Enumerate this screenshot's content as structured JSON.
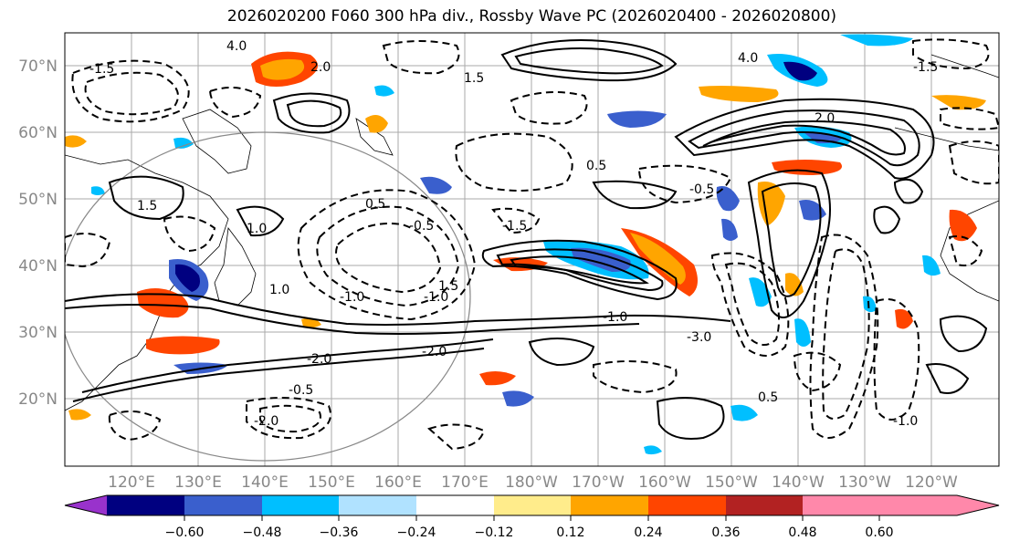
{
  "title": "2026020200 F060 300 hPa div., Rossby Wave PC (2026020400 - 2026020800)",
  "map": {
    "lat_labels": [
      "70°N",
      "60°N",
      "50°N",
      "40°N",
      "30°N",
      "20°N"
    ],
    "lon_labels": [
      "120°E",
      "130°E",
      "140°E",
      "150°E",
      "160°E",
      "170°E",
      "180°W",
      "170°W",
      "160°W",
      "150°W",
      "140°W",
      "130°W",
      "120°W"
    ],
    "contour_labels": [
      "4.0",
      "2.0",
      "1.5",
      "1.0",
      "0.5",
      "-0.5",
      "-1.0",
      "1.5",
      "2.0",
      "-1.5",
      "0.5",
      "-0.5",
      "-1.0",
      "-1.0",
      "-2.0",
      "-3.0",
      "-2.0",
      "-1.0",
      "0.5",
      "-0.5",
      "1.0",
      "1.5",
      "-1.5",
      "4.0",
      "-2.0",
      "-1.5"
    ]
  },
  "colorbar": {
    "ticks": [
      "−0.60",
      "−0.48",
      "−0.36",
      "−0.24",
      "−0.12",
      "0.12",
      "0.24",
      "0.36",
      "0.48",
      "0.60"
    ],
    "colors": [
      "#9932cc",
      "#000080",
      "#3a5fcd",
      "#00bfff",
      "#b0e2ff",
      "#ffffff",
      "#ffec8b",
      "#ffa500",
      "#ff4500",
      "#b22222",
      "#ff88aa"
    ]
  }
}
